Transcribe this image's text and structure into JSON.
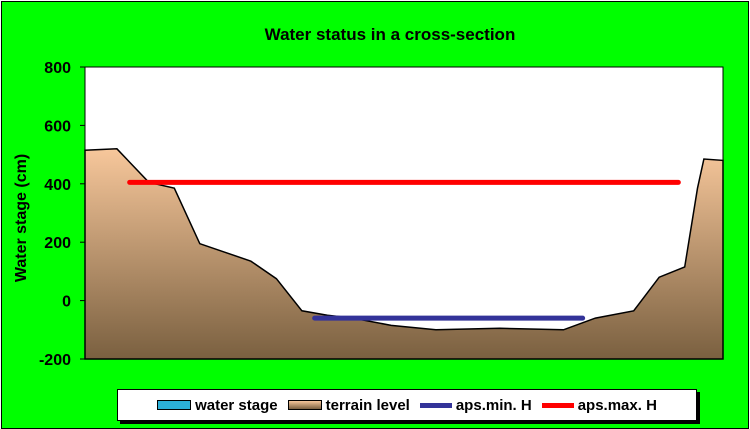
{
  "chart_data": {
    "type": "area",
    "title": "Water status in a cross-section",
    "ylabel": "Water stage (cm)",
    "xlabel": "",
    "ylim": [
      -200,
      800
    ],
    "yticks": [
      "800",
      "600",
      "400",
      "200",
      "0",
      "-200"
    ],
    "terrain": {
      "name": "terrain level",
      "x": [
        0,
        5,
        10,
        14,
        18,
        22,
        26,
        30,
        34,
        38,
        42,
        48,
        55,
        65,
        75,
        80,
        86,
        90,
        94,
        96,
        97,
        100
      ],
      "y": [
        515,
        520,
        405,
        385,
        195,
        165,
        135,
        75,
        -35,
        -50,
        -60,
        -85,
        -100,
        -95,
        -100,
        -60,
        -35,
        80,
        115,
        385,
        485,
        480
      ]
    },
    "water_stage": {
      "name": "water stage"
    },
    "aps_min": {
      "name": "aps.min. H",
      "value": -60,
      "x_range": [
        36,
        78
      ]
    },
    "aps_max": {
      "name": "aps.max. H",
      "value": 405,
      "x_range": [
        7,
        93
      ]
    },
    "colors": {
      "background": "#00ff00",
      "plot_area": "#ffffff",
      "terrain_top": "#f7c79b",
      "terrain_bottom": "#7a6040",
      "water": "#2bb0d8",
      "aps_min": "#333399",
      "aps_max": "#ff0000"
    },
    "legend_position": "bottom"
  },
  "legend": [
    {
      "label": "water stage",
      "kind": "box",
      "color": "#2bb0d8"
    },
    {
      "label": "terrain level",
      "kind": "box",
      "color": "#c8a070"
    },
    {
      "label": "aps.min. H",
      "kind": "line",
      "color": "#333399"
    },
    {
      "label": "aps.max. H",
      "kind": "line",
      "color": "#ff0000"
    }
  ]
}
